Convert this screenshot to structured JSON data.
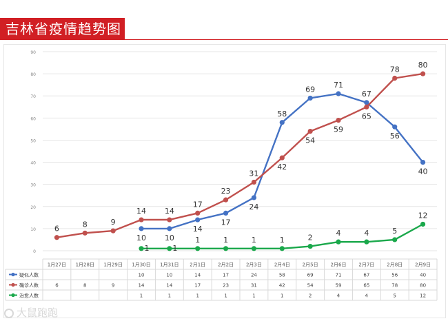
{
  "header": {
    "title": "吉林省疫情趋势图"
  },
  "watermark": {
    "text": "大鼠跑跑"
  },
  "colors": {
    "suspected": "#4472c4",
    "confirmed": "#c0504d",
    "cured": "#1aa84b",
    "grid": "#e6e6e6",
    "axis_text": "#888888",
    "label_text": "#333333"
  },
  "chart_data": {
    "type": "line",
    "title": "吉林省疫情趋势图",
    "xlabel": "",
    "ylabel": "",
    "ylim": [
      0,
      90
    ],
    "yticks": [
      0,
      10,
      20,
      30,
      40,
      50,
      60,
      70,
      80,
      90
    ],
    "grid": true,
    "legend": "table-bottom-left",
    "categories": [
      "1月27日",
      "1月28日",
      "1月29日",
      "1月30日",
      "1月31日",
      "2月1日",
      "2月2日",
      "2月3日",
      "2月4日",
      "2月5日",
      "2月6日",
      "2月7日",
      "2月8日",
      "2月9日"
    ],
    "series": [
      {
        "name": "疑似人数",
        "key": "suspected",
        "values": [
          null,
          null,
          null,
          10,
          10,
          14,
          17,
          24,
          58,
          69,
          71,
          67,
          56,
          40
        ]
      },
      {
        "name": "确诊人数",
        "key": "confirmed",
        "values": [
          6,
          8,
          9,
          14,
          14,
          17,
          23,
          31,
          42,
          54,
          59,
          65,
          78,
          80
        ]
      },
      {
        "name": "治愈人数",
        "key": "cured",
        "values": [
          null,
          null,
          null,
          1,
          1,
          1,
          1,
          1,
          1,
          2,
          4,
          4,
          5,
          12
        ]
      }
    ]
  }
}
